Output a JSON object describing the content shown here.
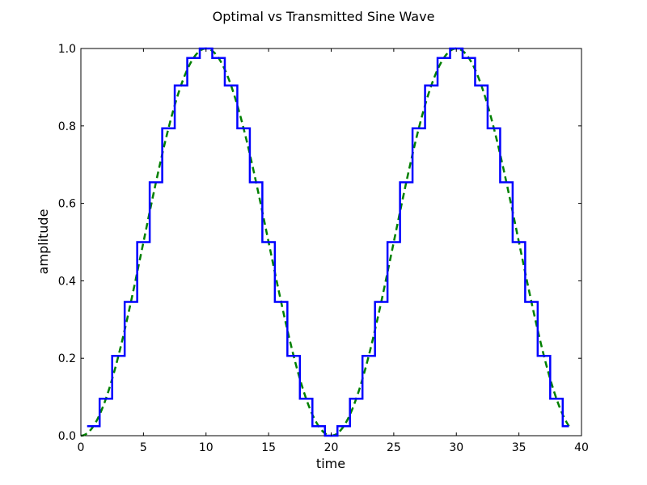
{
  "chart_data": {
    "type": "line",
    "title": "Optimal vs Transmitted Sine Wave",
    "xlabel": "time",
    "ylabel": "amplitude",
    "xlim": [
      0,
      40
    ],
    "ylim": [
      0.0,
      1.0
    ],
    "xticks": [
      0,
      5,
      10,
      15,
      20,
      25,
      30,
      35,
      40
    ],
    "xtick_labels": [
      "0",
      "5",
      "10",
      "15",
      "20",
      "25",
      "30",
      "35",
      "40"
    ],
    "yticks": [
      0.0,
      0.2,
      0.4,
      0.6,
      0.8,
      1.0
    ],
    "ytick_labels": [
      "0.0",
      "0.2",
      "0.4",
      "0.6",
      "0.8",
      "1.0"
    ],
    "grid": false,
    "legend": "none",
    "colors": {
      "transmitted": "#0000ff",
      "optimal": "#008000",
      "axes": "#000000"
    },
    "series": [
      {
        "style": "solid-step",
        "x": [
          0.5,
          1.5,
          2.5,
          3.5,
          4.5,
          5.5,
          6.5,
          7.5,
          8.5,
          9.5,
          10.5,
          11.5,
          12.5,
          13.5,
          14.5,
          15.5,
          16.5,
          17.5,
          18.5,
          19.5,
          20.5,
          21.5,
          22.5,
          23.5,
          24.5,
          25.5,
          26.5,
          27.5,
          28.5,
          29.5,
          30.5,
          31.5,
          32.5,
          33.5,
          34.5,
          35.5,
          36.5,
          37.5,
          38.5,
          39.0
        ],
        "values": [
          0.0245,
          0.0955,
          0.2061,
          0.3455,
          0.5,
          0.6545,
          0.7939,
          0.9045,
          0.9755,
          1.0,
          0.9755,
          0.9045,
          0.7939,
          0.6545,
          0.5,
          0.3455,
          0.2061,
          0.0955,
          0.0245,
          0.0,
          0.0245,
          0.0955,
          0.2061,
          0.3455,
          0.5,
          0.6545,
          0.7939,
          0.9045,
          0.9755,
          1.0,
          0.9755,
          0.9045,
          0.7939,
          0.6545,
          0.5,
          0.3455,
          0.2061,
          0.0955,
          0.0245,
          0.0245
        ]
      },
      {
        "style": "dashed-curve",
        "function": "0.5 - 0.5*cos(2*pi*x/20)",
        "x_range": [
          0,
          39
        ]
      }
    ]
  }
}
